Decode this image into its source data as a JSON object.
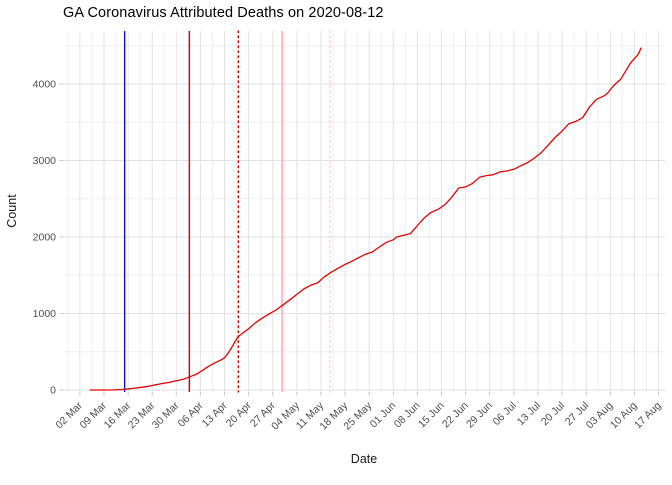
{
  "chart_data": {
    "type": "line",
    "title": "GA Coronavirus Attributed Deaths on 2020-08-12",
    "xlabel": "Date",
    "ylabel": "Count",
    "x_tick_labels": [
      "02 Mar",
      "09 Mar",
      "16 Mar",
      "23 Mar",
      "30 Mar",
      "06 Apr",
      "13 Apr",
      "20 Apr",
      "27 Apr",
      "04 May",
      "11 May",
      "18 May",
      "25 May",
      "01 Jun",
      "08 Jun",
      "15 Jun",
      "22 Jun",
      "29 Jun",
      "06 Jul",
      "13 Jul",
      "20 Jul",
      "27 Jul",
      "03 Aug",
      "10 Aug",
      "17 Aug"
    ],
    "x_tick_day_offsets": [
      0,
      7,
      14,
      21,
      28,
      35,
      42,
      49,
      56,
      63,
      70,
      77,
      84,
      91,
      98,
      105,
      112,
      119,
      126,
      133,
      140,
      147,
      154,
      161,
      168
    ],
    "y_ticks": [
      0,
      1000,
      2000,
      3000,
      4000
    ],
    "y_minor_ticks": [
      500,
      1500,
      2500,
      3500,
      4500
    ],
    "xlim_days": [
      -4.9,
      169.9
    ],
    "ylim": [
      -26,
      4692
    ],
    "grid": {
      "major_color": "#e2e2e2",
      "minor_color": "#efefef",
      "on": true
    },
    "axis": {
      "tick_color": "#c4c4c4",
      "tick_label_color": "#4d4d4d"
    },
    "legend": "none",
    "series": [
      {
        "name": "cumulative-deaths",
        "color": "#e60000",
        "points": [
          [
            3,
            0
          ],
          [
            7,
            0
          ],
          [
            10,
            2
          ],
          [
            12,
            6
          ],
          [
            14,
            14
          ],
          [
            16,
            25
          ],
          [
            18,
            36
          ],
          [
            20,
            50
          ],
          [
            22,
            68
          ],
          [
            24,
            85
          ],
          [
            26,
            100
          ],
          [
            28,
            120
          ],
          [
            30,
            140
          ],
          [
            32,
            174
          ],
          [
            34,
            211
          ],
          [
            36,
            270
          ],
          [
            37,
            300
          ],
          [
            39,
            350
          ],
          [
            41,
            394
          ],
          [
            42,
            420
          ],
          [
            43,
            480
          ],
          [
            44,
            550
          ],
          [
            45,
            630
          ],
          [
            46,
            700
          ],
          [
            47,
            733
          ],
          [
            49,
            800
          ],
          [
            51,
            880
          ],
          [
            53,
            940
          ],
          [
            55,
            996
          ],
          [
            57,
            1047
          ],
          [
            59,
            1114
          ],
          [
            61,
            1180
          ],
          [
            63,
            1250
          ],
          [
            65,
            1320
          ],
          [
            67,
            1368
          ],
          [
            69,
            1400
          ],
          [
            71,
            1480
          ],
          [
            73,
            1540
          ],
          [
            75,
            1592
          ],
          [
            77,
            1642
          ],
          [
            79,
            1684
          ],
          [
            81,
            1730
          ],
          [
            83,
            1776
          ],
          [
            85,
            1805
          ],
          [
            87,
            1870
          ],
          [
            89,
            1930
          ],
          [
            91,
            1963
          ],
          [
            92,
            2000
          ],
          [
            94,
            2022
          ],
          [
            96,
            2044
          ],
          [
            98,
            2150
          ],
          [
            100,
            2250
          ],
          [
            102,
            2322
          ],
          [
            104,
            2360
          ],
          [
            106,
            2422
          ],
          [
            108,
            2520
          ],
          [
            110,
            2640
          ],
          [
            112,
            2655
          ],
          [
            114,
            2700
          ],
          [
            116,
            2780
          ],
          [
            118,
            2802
          ],
          [
            120,
            2812
          ],
          [
            122,
            2850
          ],
          [
            124,
            2862
          ],
          [
            126,
            2884
          ],
          [
            128,
            2930
          ],
          [
            130,
            2972
          ],
          [
            132,
            3032
          ],
          [
            134,
            3104
          ],
          [
            136,
            3204
          ],
          [
            138,
            3300
          ],
          [
            140,
            3384
          ],
          [
            142,
            3480
          ],
          [
            144,
            3510
          ],
          [
            146,
            3560
          ],
          [
            148,
            3700
          ],
          [
            150,
            3800
          ],
          [
            152,
            3840
          ],
          [
            153,
            3868
          ],
          [
            155,
            3980
          ],
          [
            157,
            4060
          ],
          [
            159,
            4210
          ],
          [
            160,
            4280
          ],
          [
            161,
            4330
          ],
          [
            162,
            4380
          ],
          [
            163,
            4470
          ]
        ]
      }
    ],
    "event_lines": [
      {
        "name": "event-line-blue",
        "day": 13.0,
        "approx_date": "2020-03-15",
        "color": "#1212cc",
        "style": "solid",
        "width": 1.4
      },
      {
        "name": "event-line-red",
        "day": 31.8,
        "approx_date": "2020-04-03",
        "color": "#d40000",
        "style": "solid",
        "width": 1.4
      },
      {
        "name": "event-line-red-dotted",
        "day": 46.0,
        "approx_date": "2020-04-17",
        "color": "#d40000",
        "style": "dotted",
        "width": 1.4
      },
      {
        "name": "event-line-pink",
        "day": 58.7,
        "approx_date": "2020-04-30",
        "color": "#ffb6c1",
        "style": "solid",
        "width": 1.8
      },
      {
        "name": "event-line-pink-dotted",
        "day": 72.6,
        "approx_date": "2020-05-14",
        "color": "#ffccd4",
        "style": "dotted",
        "width": 1.4
      }
    ]
  }
}
